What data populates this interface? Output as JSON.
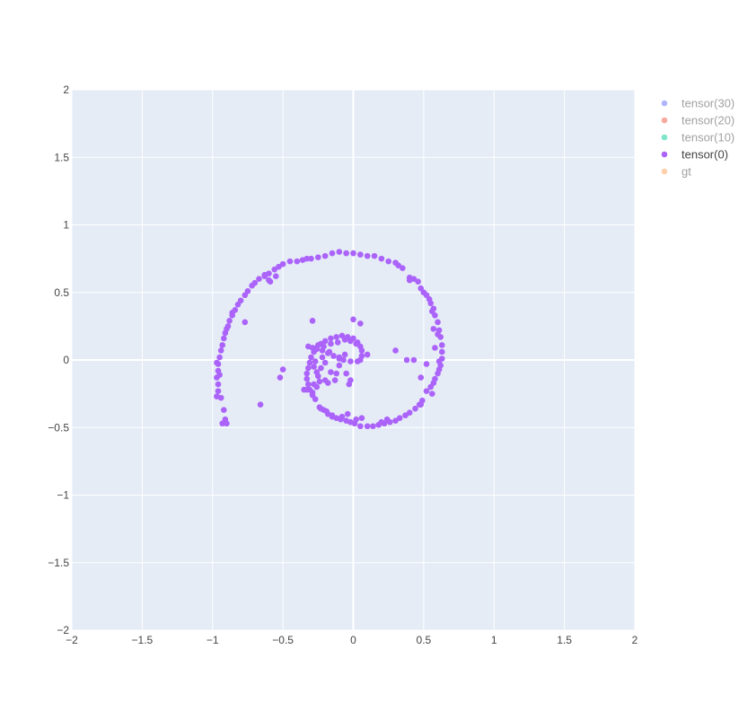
{
  "chart_data": {
    "type": "scatter",
    "title": "",
    "xlabel": "",
    "ylabel": "",
    "xlim": [
      -2,
      2
    ],
    "ylim": [
      -2,
      2
    ],
    "x_ticks": [
      -2,
      -1.5,
      -1,
      -0.5,
      0,
      0.5,
      1,
      1.5,
      2
    ],
    "y_ticks": [
      -2,
      -1.5,
      -1,
      -0.5,
      0,
      0.5,
      1,
      1.5,
      2
    ],
    "x_tick_labels": [
      "−2",
      "−1.5",
      "−1",
      "−0.5",
      "0",
      "0.5",
      "1",
      "1.5",
      "2"
    ],
    "y_tick_labels": [
      "−2",
      "−1.5",
      "−1",
      "−0.5",
      "0",
      "0.5",
      "1",
      "1.5",
      "2"
    ],
    "grid": true,
    "legend_position": "right",
    "plot_background": "#e5ecf6",
    "series": [
      {
        "name": "tensor(30)",
        "color": "#636efa",
        "visible": false,
        "points": []
      },
      {
        "name": "tensor(20)",
        "color": "#ef553b",
        "visible": false,
        "points": []
      },
      {
        "name": "tensor(10)",
        "color": "#00cc96",
        "visible": false,
        "points": []
      },
      {
        "name": "tensor(0)",
        "color": "#ab63fa",
        "visible": true,
        "points": [
          [
            -0.05,
            0.79
          ],
          [
            0.0,
            0.79
          ],
          [
            0.05,
            0.78
          ],
          [
            0.1,
            0.77
          ],
          [
            0.15,
            0.77
          ],
          [
            0.2,
            0.75
          ],
          [
            0.25,
            0.73
          ],
          [
            0.3,
            0.72
          ],
          [
            0.32,
            0.7
          ],
          [
            0.35,
            0.68
          ],
          [
            0.4,
            0.61
          ],
          [
            0.43,
            0.6
          ],
          [
            0.46,
            0.58
          ],
          [
            0.48,
            0.53
          ],
          [
            0.5,
            0.5
          ],
          [
            0.52,
            0.48
          ],
          [
            0.54,
            0.45
          ],
          [
            0.55,
            0.42
          ],
          [
            0.57,
            0.38
          ],
          [
            0.58,
            0.33
          ],
          [
            0.6,
            0.28
          ],
          [
            0.61,
            0.22
          ],
          [
            0.62,
            0.17
          ],
          [
            0.63,
            0.11
          ],
          [
            0.63,
            0.06
          ],
          [
            0.63,
            0.01
          ],
          [
            0.62,
            -0.04
          ],
          [
            0.61,
            -0.07
          ],
          [
            0.6,
            -0.1
          ],
          [
            0.58,
            -0.14
          ],
          [
            0.57,
            -0.17
          ],
          [
            0.55,
            -0.2
          ],
          [
            0.52,
            -0.23
          ],
          [
            0.49,
            -0.3
          ],
          [
            0.47,
            -0.33
          ],
          [
            0.44,
            -0.36
          ],
          [
            0.4,
            -0.39
          ],
          [
            0.37,
            -0.41
          ],
          [
            0.33,
            -0.43
          ],
          [
            0.3,
            -0.45
          ],
          [
            0.26,
            -0.46
          ],
          [
            0.22,
            -0.47
          ],
          [
            0.18,
            -0.48
          ],
          [
            0.14,
            -0.49
          ],
          [
            0.1,
            -0.49
          ],
          [
            0.05,
            -0.49
          ],
          [
            0.01,
            -0.47
          ],
          [
            -0.02,
            -0.46
          ],
          [
            -0.05,
            -0.45
          ],
          [
            -0.09,
            -0.44
          ],
          [
            -0.12,
            -0.43
          ],
          [
            -0.15,
            -0.42
          ],
          [
            -0.18,
            -0.4
          ],
          [
            -0.21,
            -0.37
          ],
          [
            -0.24,
            -0.35
          ],
          [
            -0.27,
            -0.29
          ],
          [
            -0.29,
            -0.26
          ],
          [
            -0.31,
            -0.22
          ],
          [
            -0.32,
            -0.18
          ],
          [
            -0.33,
            -0.14
          ],
          [
            -0.33,
            -0.1
          ],
          [
            -0.32,
            -0.06
          ],
          [
            -0.31,
            -0.02
          ],
          [
            -0.3,
            0.02
          ],
          [
            -0.28,
            0.06
          ],
          [
            -0.26,
            0.09
          ],
          [
            -0.23,
            0.12
          ],
          [
            -0.2,
            0.14
          ],
          [
            -0.16,
            0.16
          ],
          [
            -0.12,
            0.17
          ],
          [
            -0.08,
            0.18
          ],
          [
            -0.04,
            0.17
          ],
          [
            0.0,
            0.16
          ],
          [
            0.03,
            0.13
          ],
          [
            0.05,
            0.1
          ],
          [
            0.06,
            0.07
          ],
          [
            0.06,
            0.03
          ],
          [
            0.05,
            0.0
          ],
          [
            0.03,
            -0.01
          ],
          [
            -0.02,
            -0.01
          ],
          [
            -0.07,
            0.0
          ],
          [
            -0.1,
            0.01
          ],
          [
            -0.14,
            0.03
          ],
          [
            -0.18,
            0.05
          ],
          [
            -0.22,
            0.07
          ],
          [
            -0.26,
            0.08
          ],
          [
            -0.29,
            0.09
          ],
          [
            -0.32,
            0.1
          ],
          [
            -0.25,
            0.11
          ],
          [
            -0.21,
            0.1
          ],
          [
            -0.16,
            0.12
          ],
          [
            -0.11,
            0.13
          ],
          [
            -0.06,
            0.15
          ],
          [
            -0.02,
            0.14
          ],
          [
            0.02,
            0.12
          ],
          [
            -0.17,
            0.06
          ],
          [
            -0.22,
            0.02
          ],
          [
            -0.27,
            -0.01
          ],
          [
            -0.28,
            -0.05
          ],
          [
            -0.26,
            -0.09
          ],
          [
            -0.25,
            -0.12
          ],
          [
            -0.24,
            -0.16
          ],
          [
            -0.26,
            -0.2
          ],
          [
            -0.29,
            -0.24
          ],
          [
            -0.33,
            -0.22
          ],
          [
            -0.28,
            -0.18
          ],
          [
            -0.2,
            -0.15
          ],
          [
            -0.12,
            -0.1
          ],
          [
            -0.1,
            -0.04
          ],
          [
            -0.06,
            0.04
          ],
          [
            -0.19,
            -0.38
          ],
          [
            -0.23,
            -0.36
          ],
          [
            -0.15,
            -0.41
          ],
          [
            -0.08,
            -0.42
          ],
          [
            -0.04,
            -0.4
          ],
          [
            0.02,
            -0.44
          ],
          [
            0.06,
            -0.43
          ],
          [
            0.2,
            -0.46
          ],
          [
            0.24,
            -0.44
          ],
          [
            -0.1,
            0.8
          ],
          [
            -0.15,
            0.79
          ],
          [
            -0.2,
            0.77
          ],
          [
            -0.25,
            0.76
          ],
          [
            -0.3,
            0.75
          ],
          [
            -0.33,
            0.75
          ],
          [
            -0.36,
            0.74
          ],
          [
            -0.4,
            0.73
          ],
          [
            -0.45,
            0.73
          ],
          [
            -0.5,
            0.71
          ],
          [
            -0.53,
            0.69
          ],
          [
            -0.56,
            0.67
          ],
          [
            -0.6,
            0.64
          ],
          [
            -0.63,
            0.62
          ],
          [
            -0.67,
            0.6
          ],
          [
            -0.7,
            0.57
          ],
          [
            -0.72,
            0.55
          ],
          [
            -0.75,
            0.51
          ],
          [
            -0.77,
            0.48
          ],
          [
            -0.8,
            0.44
          ],
          [
            -0.82,
            0.41
          ],
          [
            -0.84,
            0.37
          ],
          [
            -0.86,
            0.33
          ],
          [
            -0.88,
            0.29
          ],
          [
            -0.89,
            0.25
          ],
          [
            -0.91,
            0.2
          ],
          [
            -0.92,
            0.16
          ],
          [
            -0.93,
            0.11
          ],
          [
            -0.94,
            0.07
          ],
          [
            -0.95,
            0.02
          ],
          [
            -0.96,
            -0.03
          ],
          [
            -0.96,
            -0.08
          ],
          [
            -0.97,
            -0.13
          ],
          [
            -0.96,
            -0.18
          ],
          [
            -0.96,
            -0.23
          ],
          [
            -0.94,
            -0.28
          ],
          [
            -0.92,
            -0.37
          ],
          [
            -0.91,
            -0.44
          ],
          [
            -0.9,
            -0.47
          ],
          [
            -0.93,
            -0.47
          ],
          [
            -0.59,
            0.58
          ],
          [
            -0.55,
            0.62
          ],
          [
            -0.6,
            0.59
          ],
          [
            -0.63,
            0.63
          ],
          [
            -0.77,
            0.28
          ],
          [
            -0.86,
            0.35
          ],
          [
            -0.9,
            0.23
          ],
          [
            -0.97,
            -0.02
          ],
          [
            -0.95,
            -0.11
          ],
          [
            -0.97,
            -0.27
          ],
          [
            0.05,
            0.27
          ],
          [
            0.0,
            0.3
          ],
          [
            -0.29,
            0.29
          ],
          [
            -0.1,
            0.02
          ],
          [
            -0.2,
            -0.02
          ],
          [
            -0.16,
            -0.09
          ],
          [
            -0.23,
            -0.06
          ],
          [
            -0.18,
            -0.17
          ],
          [
            -0.13,
            -0.15
          ],
          [
            -0.05,
            -0.1
          ],
          [
            -0.02,
            -0.15
          ],
          [
            -0.03,
            -0.18
          ],
          [
            0.3,
            0.07
          ],
          [
            0.1,
            0.04
          ],
          [
            0.38,
            0.0
          ],
          [
            0.43,
            0.0
          ],
          [
            0.48,
            -0.13
          ],
          [
            0.6,
            0.19
          ],
          [
            0.58,
            0.09
          ],
          [
            0.61,
            -0.01
          ],
          [
            -0.5,
            -0.07
          ],
          [
            -0.52,
            -0.13
          ],
          [
            -0.66,
            -0.33
          ],
          [
            -0.35,
            -0.22
          ],
          [
            0.4,
            0.59
          ],
          [
            0.56,
            0.36
          ],
          [
            0.57,
            0.23
          ],
          [
            0.52,
            -0.03
          ],
          [
            0.56,
            -0.25
          ],
          [
            0.48,
            -0.33
          ]
        ]
      },
      {
        "name": "gt",
        "color": "#ffa15a",
        "visible": false,
        "points": []
      }
    ]
  }
}
